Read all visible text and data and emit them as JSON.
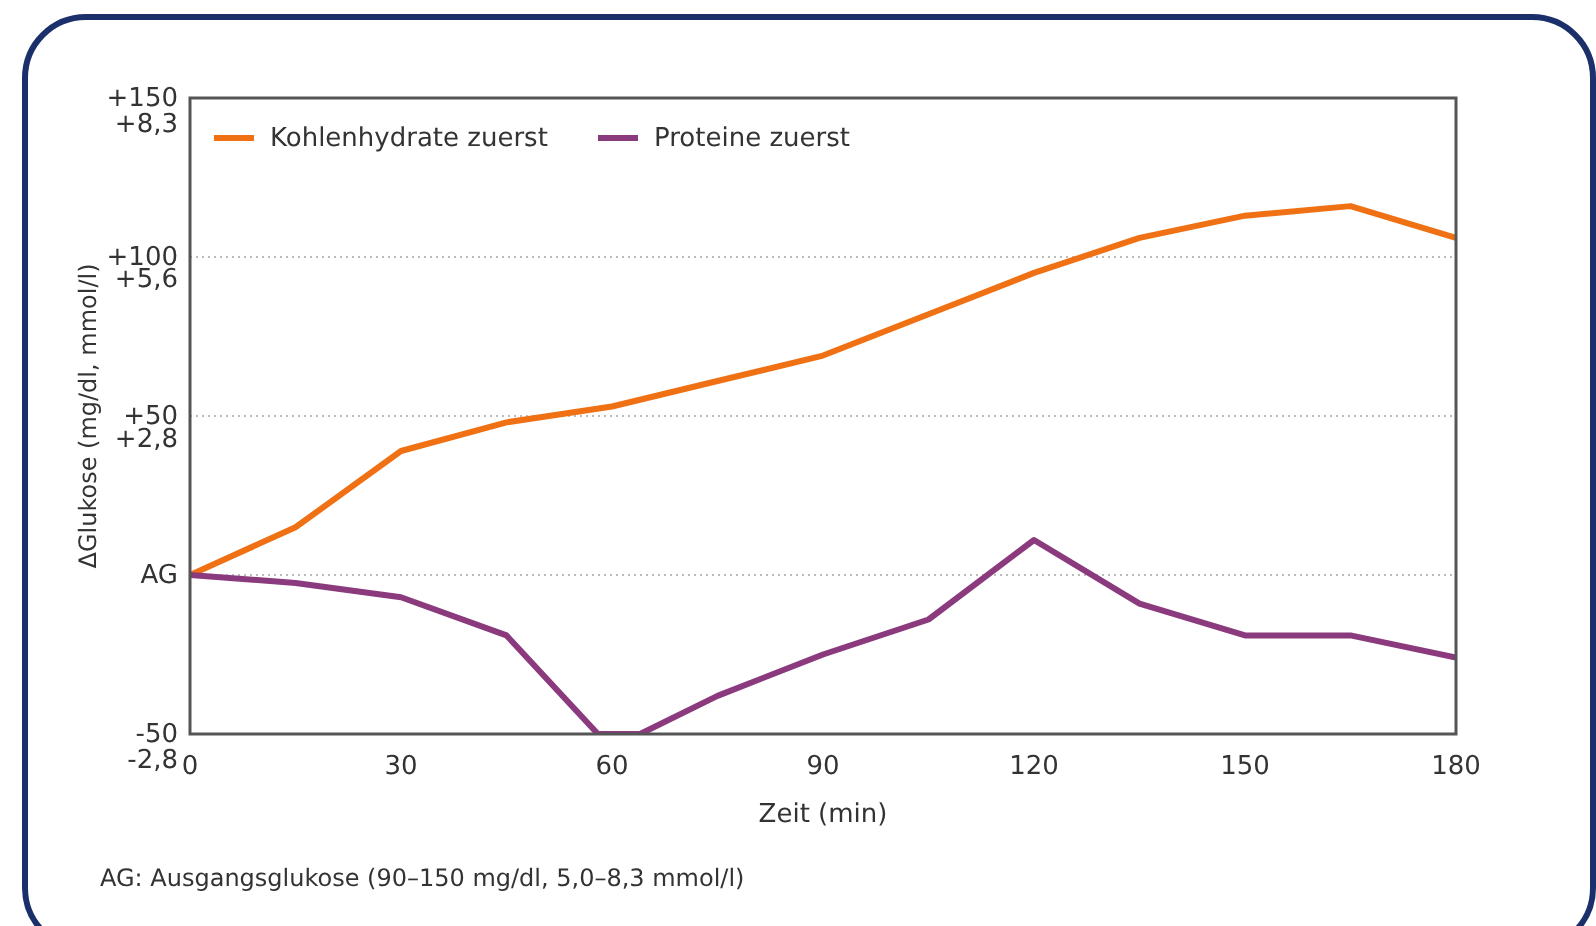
{
  "chart_data": {
    "type": "line",
    "xlabel": "Zeit (min)",
    "ylabel": "ΔGlukose (mg/dl, mmol/l)",
    "xlim": [
      0,
      180
    ],
    "xticks": [
      0,
      30,
      60,
      90,
      120,
      150,
      180
    ],
    "ylim": [
      -50,
      150
    ],
    "yticks": [
      {
        "value": -50,
        "label": "-50"
      },
      {
        "value": 0,
        "label": "AG"
      },
      {
        "value": 50,
        "label": "+50"
      },
      {
        "value": 100,
        "label": "+100"
      },
      {
        "value": 150,
        "label": "+150"
      }
    ],
    "y2lim": [
      -2.8,
      8.3
    ],
    "y2ticks": [
      {
        "value": -2.8,
        "label": "-2,8"
      },
      {
        "value": 2.8,
        "label": "+2,8"
      },
      {
        "value": 5.6,
        "label": "+5,6"
      },
      {
        "value": 8.3,
        "label": "+8,3"
      }
    ],
    "grid": "y",
    "legend": "top left",
    "line_style": "solid",
    "marker": "none",
    "series": [
      {
        "name": "Kohlenhydrate zuerst",
        "color": "#f07014",
        "x": [
          0,
          15,
          30,
          45,
          60,
          75,
          90,
          105,
          120,
          135,
          150,
          165,
          180
        ],
        "values": [
          0,
          15,
          39,
          48,
          53,
          61,
          69,
          82,
          95,
          106,
          113,
          116,
          106
        ]
      },
      {
        "name": "Proteine zuerst",
        "color": "#8b3a7e",
        "x": [
          0,
          15,
          30,
          45,
          58,
          64,
          75,
          90,
          105,
          120,
          135,
          150,
          165,
          180
        ],
        "values": [
          0,
          -2.5,
          -7,
          -19,
          -50,
          -50,
          -38,
          -25,
          -14,
          11,
          -9,
          -19,
          -19,
          -26
        ]
      }
    ],
    "annotations": [
      "AG: Ausgangsglukose (90–150 mg/dl, 5,0–8,3 mmol/l)"
    ]
  }
}
